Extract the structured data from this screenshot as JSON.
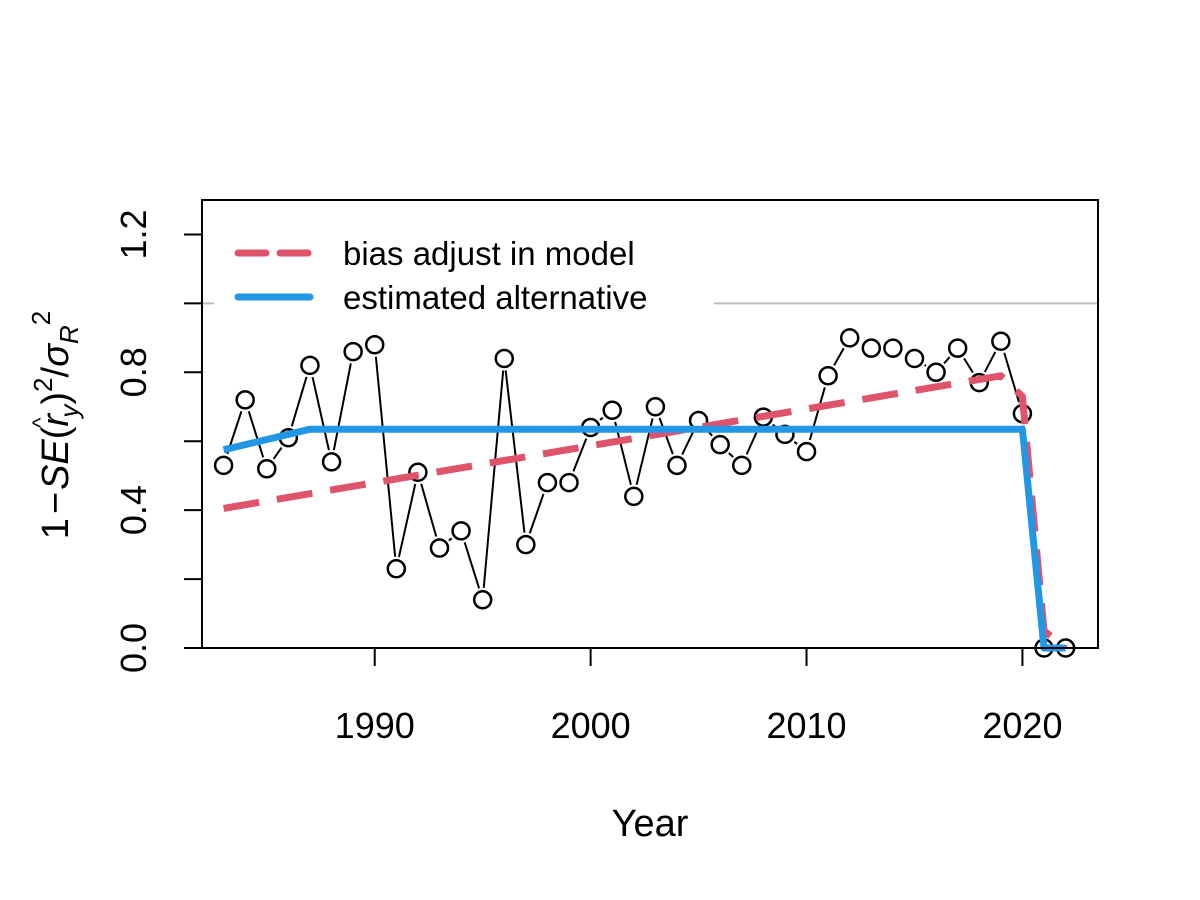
{
  "chart_data": {
    "type": "line",
    "title": "",
    "xlabel": "Year",
    "ylabel": "1 − SE(r̂y)² / σR²",
    "ylabel_parts": {
      "lead": "1",
      "minus": "−",
      "se": "SE",
      "r": "r",
      "hat": "^",
      "sub_y": "y",
      "sq": "2",
      "slash": "/",
      "sigma": "σ",
      "sub_R": "R",
      "sq2": "2"
    },
    "xlim": [
      1982,
      2023.5
    ],
    "ylim": [
      0,
      1.3
    ],
    "x_ticks": [
      1990,
      2000,
      2010,
      2020
    ],
    "y_ticks": [
      0.0,
      0.4,
      0.8,
      1.2
    ],
    "y_tick_labels": [
      "0.0",
      "0.4",
      "0.8",
      "1.2"
    ],
    "y_minor_ticks": [
      0.2,
      0.6,
      1.0
    ],
    "reference_line": 1.0,
    "points": {
      "x": [
        1983,
        1984,
        1985,
        1986,
        1987,
        1988,
        1989,
        1990,
        1991,
        1992,
        1993,
        1994,
        1995,
        1996,
        1997,
        1998,
        1999,
        2000,
        2001,
        2002,
        2003,
        2004,
        2005,
        2006,
        2007,
        2008,
        2009,
        2010,
        2011,
        2012,
        2013,
        2014,
        2015,
        2016,
        2017,
        2018,
        2019,
        2020,
        2021,
        2022
      ],
      "y": [
        0.53,
        0.72,
        0.52,
        0.61,
        0.82,
        0.54,
        0.86,
        0.88,
        0.23,
        0.51,
        0.29,
        0.34,
        0.14,
        0.84,
        0.3,
        0.48,
        0.48,
        0.64,
        0.69,
        0.44,
        0.7,
        0.53,
        0.66,
        0.59,
        0.53,
        0.67,
        0.62,
        0.57,
        0.79,
        0.9,
        0.87,
        0.87,
        0.84,
        0.8,
        0.87,
        0.77,
        0.89,
        0.68,
        0.0,
        0.0
      ]
    },
    "series": [
      {
        "name": "bias adjust in model",
        "color": "#DF536B",
        "style": "dashed",
        "x": [
          1983,
          2019,
          2020,
          2021,
          2022
        ],
        "y": [
          0.405,
          0.79,
          0.73,
          0.05,
          0.0
        ]
      },
      {
        "name": "estimated alternative",
        "color": "#2297E6",
        "style": "solid",
        "x": [
          1983,
          1987,
          2020,
          2021,
          2022
        ],
        "y": [
          0.575,
          0.635,
          0.635,
          0.0,
          0.0
        ]
      }
    ],
    "legend_position": "top-left",
    "grid": false
  }
}
